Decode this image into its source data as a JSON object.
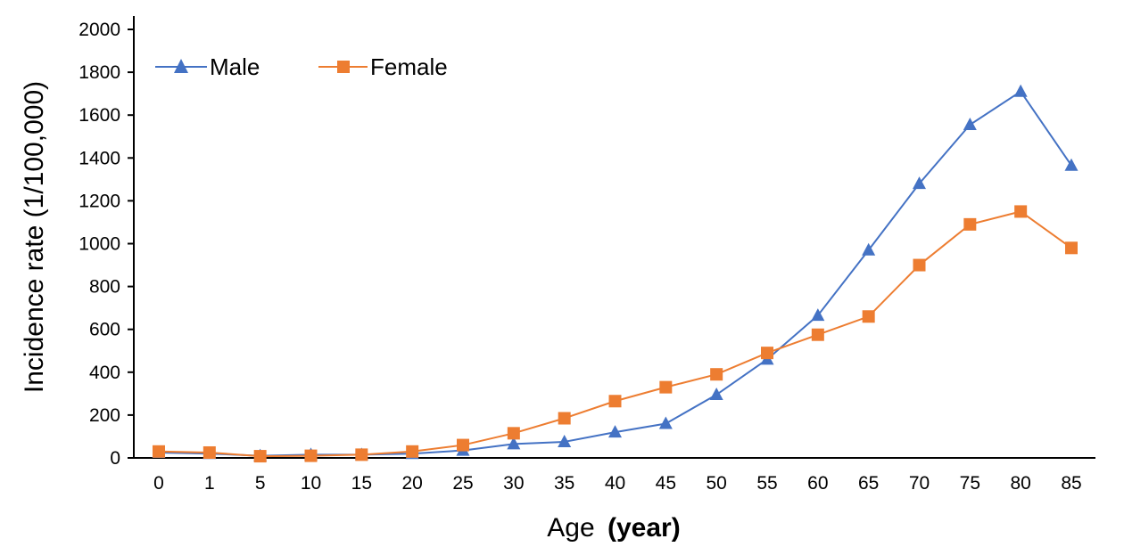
{
  "chart_data": {
    "type": "line",
    "title": "",
    "xlabel": "Age",
    "xlabel_unit": "(year)",
    "ylabel": "Incidence rate (1/100,000)",
    "categories": [
      "0",
      "1",
      "5",
      "10",
      "15",
      "20",
      "25",
      "30",
      "35",
      "40",
      "45",
      "50",
      "55",
      "60",
      "65",
      "70",
      "75",
      "80",
      "85"
    ],
    "yticks": [
      "0",
      "200",
      "400",
      "600",
      "800",
      "1000",
      "1200",
      "1400",
      "1600",
      "1800",
      "2000"
    ],
    "ylim": [
      0,
      2000
    ],
    "grid": false,
    "legend_position": "top-left",
    "series": [
      {
        "name": "Male",
        "marker": "triangle",
        "color": "#4472C4",
        "values": [
          25,
          20,
          10,
          15,
          15,
          20,
          35,
          65,
          75,
          120,
          160,
          295,
          460,
          665,
          970,
          1280,
          1555,
          1710,
          1365
        ]
      },
      {
        "name": "Female",
        "marker": "square",
        "color": "#ED7D31",
        "values": [
          30,
          25,
          8,
          10,
          15,
          30,
          60,
          115,
          185,
          265,
          330,
          390,
          490,
          575,
          660,
          900,
          1090,
          1150,
          980
        ]
      }
    ]
  }
}
